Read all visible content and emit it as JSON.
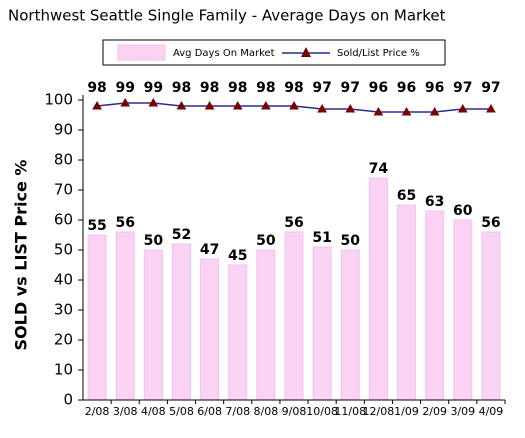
{
  "chart_data": {
    "type": "bar",
    "title": "Northwest Seattle Single Family - Average Days on Market",
    "y_label": "SOLD vs LIST Price %",
    "categories": [
      "2/08",
      "3/08",
      "4/08",
      "5/08",
      "6/08",
      "7/08",
      "8/08",
      "9/08",
      "10/08",
      "11/08",
      "12/08",
      "1/09",
      "2/09",
      "3/09",
      "4/09"
    ],
    "series": [
      {
        "name": "Avg Days On Market",
        "type": "bar",
        "color": "#f9d2f4",
        "values": [
          55,
          56,
          50,
          52,
          47,
          45,
          50,
          56,
          51,
          50,
          74,
          65,
          63,
          60,
          56
        ]
      },
      {
        "name": "Sold/List Price %",
        "type": "line",
        "color": "#2b2b90",
        "marker_color": "#7a0000",
        "values": [
          98,
          99,
          99,
          98,
          98,
          98,
          98,
          98,
          97,
          97,
          96,
          96,
          96,
          97,
          97
        ]
      }
    ],
    "ylim": [
      0,
      100
    ],
    "yticks": [
      0,
      10,
      20,
      30,
      40,
      50,
      60,
      70,
      80,
      90,
      100
    ],
    "grid": false,
    "legend": "top"
  }
}
